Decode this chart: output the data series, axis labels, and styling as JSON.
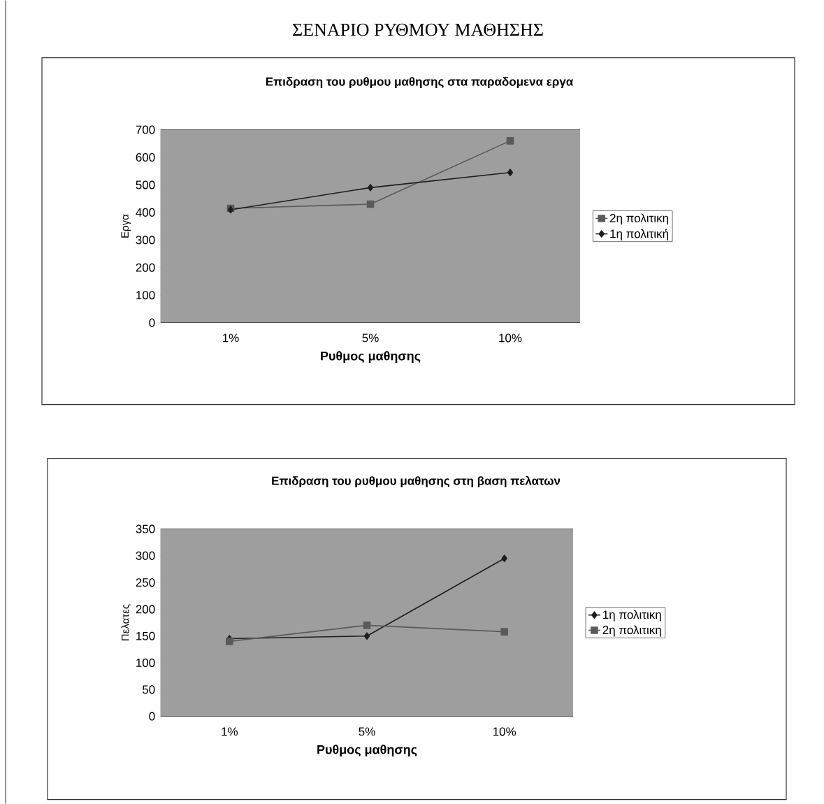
{
  "chart_data": [
    {
      "type": "line",
      "title": "Επιδραση του ρυθμου μαθησης στα παραδομενα εργα",
      "xlabel": "Ρυθμος μαθησης",
      "ylabel": "Εργα",
      "annotations": [
        "ΣΕΝΑΡΙΟ ΡΥΘΜΟΥ ΜΑΘΗΣΗΣ"
      ],
      "categories": [
        "1%",
        "5%",
        "10%"
      ],
      "series": [
        {
          "name": "2η πολιτικη",
          "color": "#5a5a5a",
          "marker": "square",
          "values": [
            415,
            430,
            660
          ]
        },
        {
          "name": "1η πολιτική",
          "color": "#1e1e1e",
          "marker": "diamond",
          "values": [
            410,
            490,
            545
          ]
        }
      ],
      "ylim": [
        0,
        700
      ],
      "yticks": [
        0,
        100,
        200,
        300,
        400,
        500,
        600,
        700
      ],
      "grid": "y",
      "legend": "right"
    },
    {
      "type": "line",
      "title": "Επιδραση του ρυθμου μαθησης στη βαση πελατων",
      "xlabel": "Ρυθμος μαθησης",
      "ylabel": "Πελατες",
      "categories": [
        "1%",
        "5%",
        "10%"
      ],
      "series": [
        {
          "name": "1η πολιτικη",
          "color": "#1e1e1e",
          "marker": "diamond",
          "values": [
            145,
            150,
            295
          ]
        },
        {
          "name": "2η πολιτικη",
          "color": "#5a5a5a",
          "marker": "square",
          "values": [
            140,
            170,
            158
          ]
        }
      ],
      "ylim": [
        0,
        350
      ],
      "yticks": [
        0,
        50,
        100,
        150,
        200,
        250,
        300,
        350
      ],
      "grid": "y",
      "legend": "right"
    }
  ]
}
